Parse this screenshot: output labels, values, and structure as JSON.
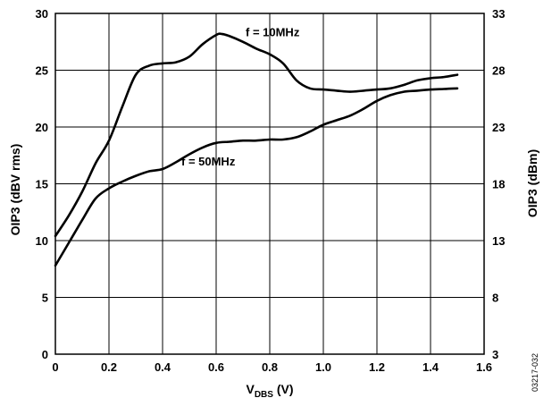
{
  "chart_data": {
    "type": "line",
    "xlabel_main": "V",
    "xlabel_sub": "DBS",
    "xlabel_unit": " (V)",
    "ylabel": "OIP3 (dBV rms)",
    "ylabel_right": "OIP3 (dBm)",
    "xlim": [
      0,
      1.6
    ],
    "ylim": [
      0,
      30
    ],
    "ylim_right": [
      3,
      33
    ],
    "x_ticks": [
      "0",
      "0.2",
      "0.4",
      "0.6",
      "0.8",
      "1.0",
      "1.2",
      "1.4",
      "1.6"
    ],
    "y_ticks": [
      "0",
      "5",
      "10",
      "15",
      "20",
      "25",
      "30"
    ],
    "y_right_ticks": [
      "3",
      "8",
      "13",
      "18",
      "23",
      "28",
      "33"
    ],
    "grid": true,
    "series": [
      {
        "name": "f = 10MHz",
        "x": [
          0,
          0.05,
          0.1,
          0.15,
          0.2,
          0.25,
          0.3,
          0.35,
          0.4,
          0.45,
          0.5,
          0.55,
          0.6,
          0.62,
          0.65,
          0.7,
          0.75,
          0.8,
          0.85,
          0.9,
          0.95,
          1.0,
          1.05,
          1.1,
          1.15,
          1.2,
          1.25,
          1.3,
          1.35,
          1.4,
          1.45,
          1.5
        ],
        "y": [
          10.4,
          12.2,
          14.3,
          16.8,
          18.8,
          21.8,
          24.6,
          25.4,
          25.6,
          25.7,
          26.2,
          27.3,
          28.1,
          28.2,
          28.0,
          27.5,
          26.9,
          26.4,
          25.6,
          24.1,
          23.4,
          23.3,
          23.2,
          23.1,
          23.2,
          23.3,
          23.4,
          23.7,
          24.1,
          24.3,
          24.4,
          24.6
        ]
      },
      {
        "name": "f = 50MHz",
        "x": [
          0,
          0.05,
          0.1,
          0.15,
          0.2,
          0.25,
          0.3,
          0.35,
          0.4,
          0.45,
          0.5,
          0.55,
          0.6,
          0.65,
          0.7,
          0.75,
          0.8,
          0.85,
          0.9,
          0.95,
          1.0,
          1.05,
          1.1,
          1.15,
          1.2,
          1.25,
          1.3,
          1.35,
          1.4,
          1.45,
          1.5
        ],
        "y": [
          7.8,
          9.8,
          11.8,
          13.7,
          14.6,
          15.2,
          15.7,
          16.1,
          16.3,
          16.9,
          17.6,
          18.2,
          18.6,
          18.7,
          18.8,
          18.8,
          18.9,
          18.9,
          19.1,
          19.6,
          20.2,
          20.6,
          21.0,
          21.6,
          22.3,
          22.8,
          23.1,
          23.2,
          23.3,
          23.35,
          23.4
        ]
      }
    ],
    "annotations": [
      {
        "text": "f = 10MHz",
        "x": 0.71,
        "y": 28.4
      },
      {
        "text": "f = 50MHz",
        "x": 0.47,
        "y": 17.0
      }
    ],
    "figure_code": "03217-032"
  }
}
